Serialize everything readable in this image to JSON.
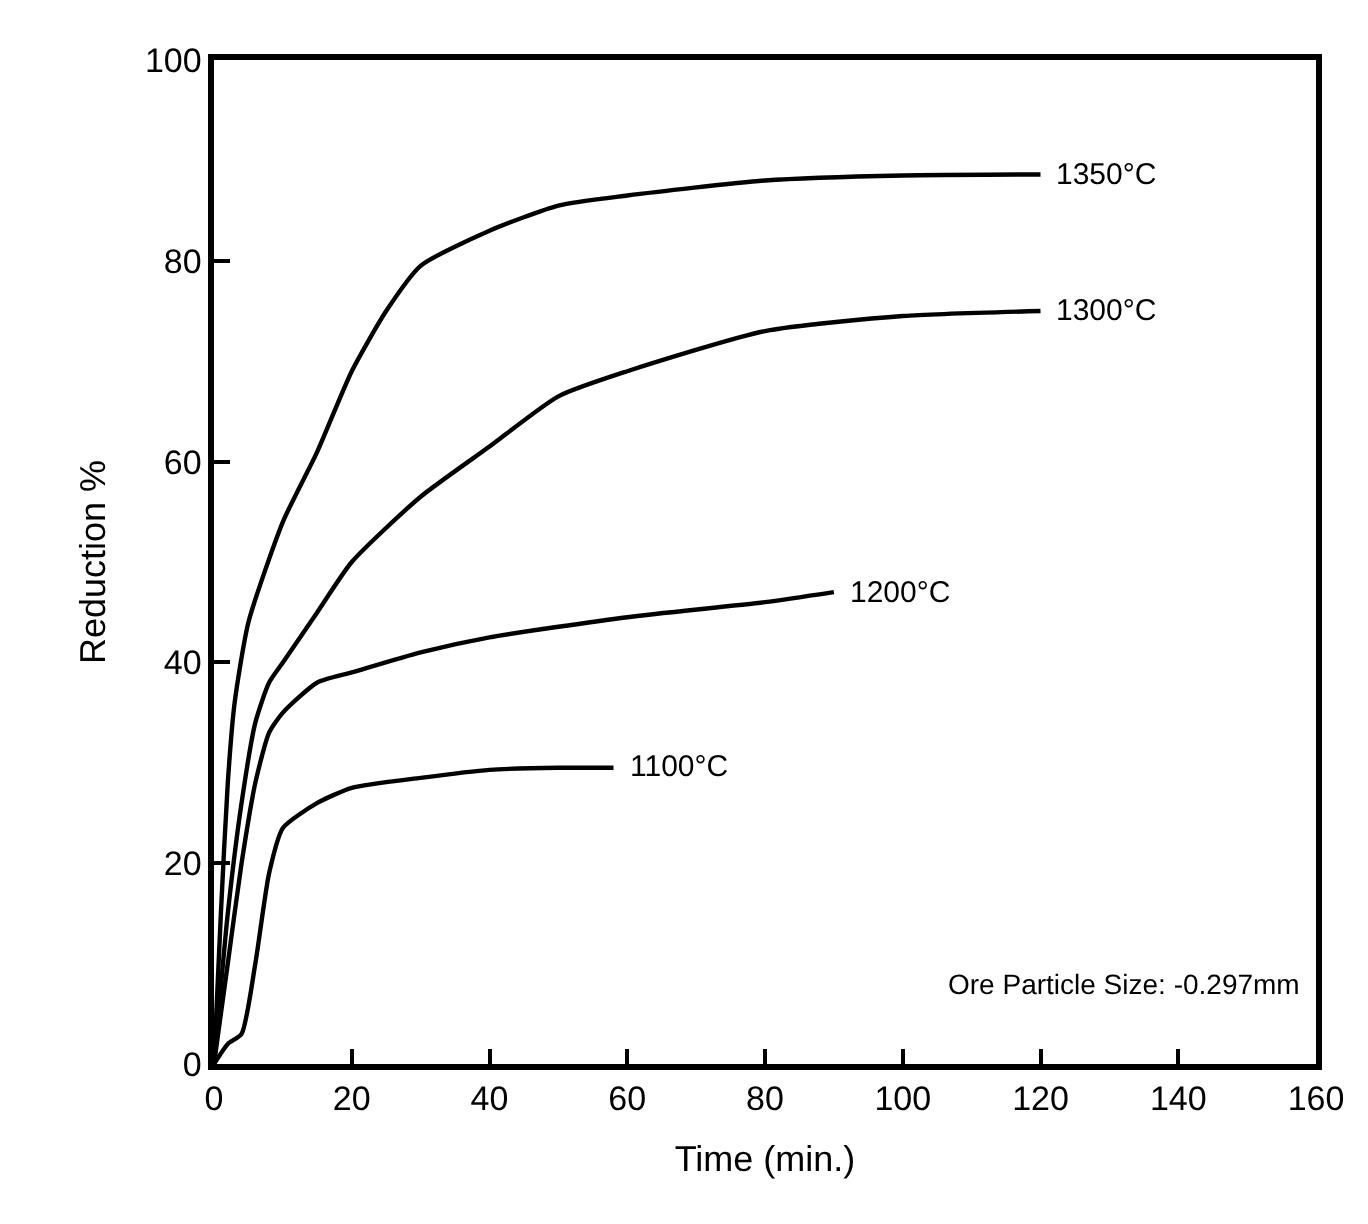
{
  "chart_data": {
    "type": "line",
    "xlabel": "Time (min.)",
    "ylabel": "Reduction %",
    "xlim": [
      0,
      160
    ],
    "xticks": [
      0,
      20,
      40,
      60,
      80,
      100,
      120,
      140,
      160
    ],
    "ylim": [
      0,
      100
    ],
    "yticks": [
      0,
      20,
      40,
      60,
      80,
      100
    ],
    "legend": false,
    "marker": "none",
    "line_style": "solid",
    "annotations": [
      "Ore Particle Size: -0.297mm"
    ],
    "series": [
      {
        "name": "1350°C",
        "color": "#000000",
        "x": [
          0,
          1,
          2,
          3,
          5,
          10,
          15,
          20,
          25,
          30,
          40,
          50,
          60,
          80,
          100,
          120
        ],
        "values": [
          0,
          15,
          28,
          36,
          44,
          54,
          61,
          69,
          75,
          79.5,
          83,
          85.5,
          86.5,
          88,
          88.5,
          88.6
        ]
      },
      {
        "name": "1300°C",
        "color": "#000000",
        "x": [
          0,
          2,
          4,
          6,
          8,
          10,
          15,
          20,
          30,
          40,
          50,
          60,
          80,
          100,
          120
        ],
        "values": [
          0,
          15,
          26,
          34,
          38,
          40,
          45,
          50,
          56.5,
          61.5,
          66.5,
          69,
          73,
          74.5,
          75
        ]
      },
      {
        "name": "1200°C",
        "color": "#000000",
        "x": [
          0,
          2,
          4,
          6,
          8,
          10,
          15,
          20,
          30,
          40,
          60,
          80,
          90
        ],
        "values": [
          0,
          10,
          20,
          28,
          33,
          35,
          38,
          39,
          41,
          42.5,
          44.5,
          46,
          47
        ]
      },
      {
        "name": "1100°C",
        "color": "#000000",
        "x": [
          0,
          2,
          4,
          6,
          8,
          10,
          15,
          20,
          30,
          40,
          50,
          58
        ],
        "values": [
          0,
          2,
          3,
          10,
          19,
          23.5,
          26,
          27.5,
          28.5,
          29.3,
          29.5,
          29.5
        ]
      }
    ]
  }
}
